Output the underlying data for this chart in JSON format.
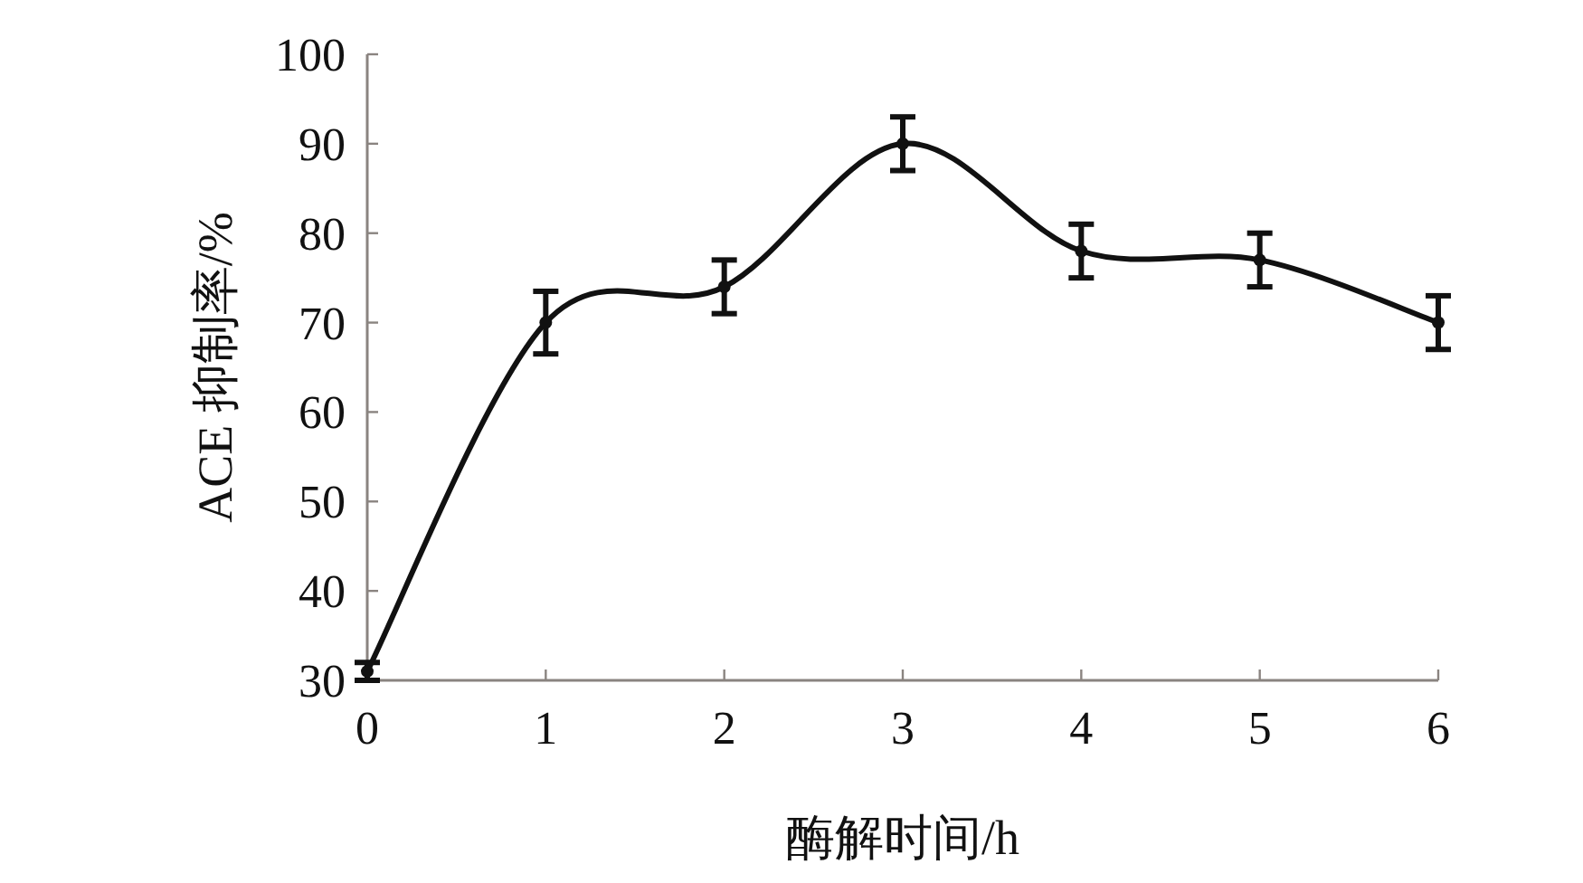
{
  "chart_data": {
    "type": "line",
    "xlabel": "酶解时间/h",
    "ylabel": "ACE 抑制率/%",
    "x": [
      0,
      1,
      2,
      3,
      4,
      5,
      6
    ],
    "values": [
      31,
      70,
      74,
      90,
      78,
      77,
      70
    ],
    "errors": [
      1,
      3.5,
      3,
      3,
      3,
      3,
      3
    ],
    "xlim": [
      0,
      6
    ],
    "xticks": [
      0,
      1,
      2,
      3,
      4,
      5,
      6
    ],
    "ylim": [
      30,
      100
    ],
    "yticks": [
      30,
      40,
      50,
      60,
      70,
      80,
      90,
      100
    ],
    "marker": "circle",
    "line_style": "solid",
    "color": "#111111"
  }
}
